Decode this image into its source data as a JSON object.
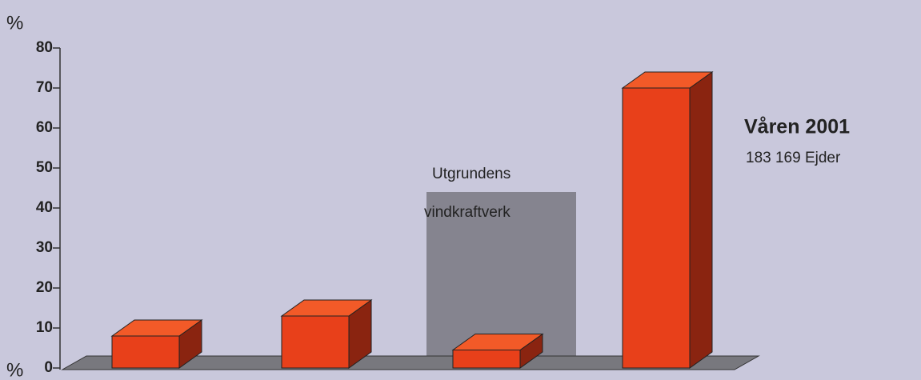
{
  "chart_data": {
    "type": "bar3d",
    "ylabel": "%",
    "categories": [
      null,
      null,
      null,
      null
    ],
    "values": [
      8,
      13,
      4.5,
      70
    ],
    "color": "#e8401a",
    "ylim": [
      0,
      80
    ],
    "yticks": [
      0,
      10,
      20,
      30,
      40,
      50,
      60,
      70,
      80
    ],
    "annotations": [
      "%",
      "Utgrundens",
      "vindkraftverk",
      "Våren  2001",
      "183 169 Ejder"
    ]
  }
}
